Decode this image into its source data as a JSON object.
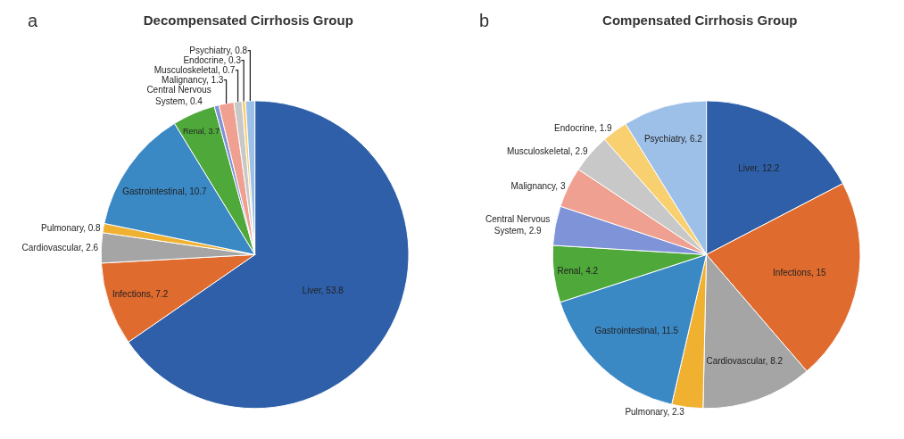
{
  "chart_data": [
    {
      "type": "pie",
      "title": "Decompensated Cirrhosis Group",
      "annotations": [
        "a"
      ],
      "legend": false,
      "categories": [
        "Liver",
        "Infections",
        "Cardiovascular",
        "Pulmonary",
        "Gastrointestinal",
        "Renal",
        "Central Nervous System",
        "Malignancy",
        "Musculoskeletal",
        "Endocrine",
        "Psychiatry"
      ],
      "values": [
        53.8,
        7.2,
        2.6,
        0.8,
        10.7,
        3.7,
        0.4,
        1.3,
        0.7,
        0.3,
        0.8
      ],
      "value_labels": [
        ", 53.8",
        ", 7.2",
        ", 2.6",
        ", 0.8",
        ", 10.7",
        ", 3.7",
        ", 0.4",
        ", 1.3",
        ", 0.7",
        ", 0.3",
        ", 0.8"
      ],
      "colors": [
        "#2e5fa8",
        "#e06b2e",
        "#a5a5a5",
        "#f0b030",
        "#3a88c4",
        "#4ea83a",
        "#7f93d8",
        "#f0a090",
        "#c8c8c8",
        "#f8d070",
        "#9dc0e8"
      ]
    },
    {
      "type": "pie",
      "title": "Compensated Cirrhosis Group",
      "annotations": [
        "b"
      ],
      "legend": false,
      "categories": [
        "Liver",
        "Infections",
        "Cardiovascular",
        "Pulmonary",
        "Gastrointestinal",
        "Renal",
        "Central Nervous System",
        "Malignancy",
        "Musculoskeletal",
        "Endocrine",
        "Psychiatry"
      ],
      "values": [
        12.2,
        15,
        8.2,
        2.3,
        11.5,
        4.2,
        2.9,
        3,
        2.9,
        1.9,
        6.2
      ],
      "value_labels": [
        ", 12.2",
        ", 15",
        ", 8.2",
        ", 2.3",
        ", 11.5",
        ", 4.2",
        ", 2.9",
        ", 3",
        ", 2.9",
        ", 1.9",
        ", 6.2"
      ],
      "colors": [
        "#2e5fa8",
        "#e06b2e",
        "#a5a5a5",
        "#f0b030",
        "#3a88c4",
        "#4ea83a",
        "#7f93d8",
        "#f0a090",
        "#c8c8c8",
        "#f8d070",
        "#9dc0e8"
      ]
    }
  ]
}
